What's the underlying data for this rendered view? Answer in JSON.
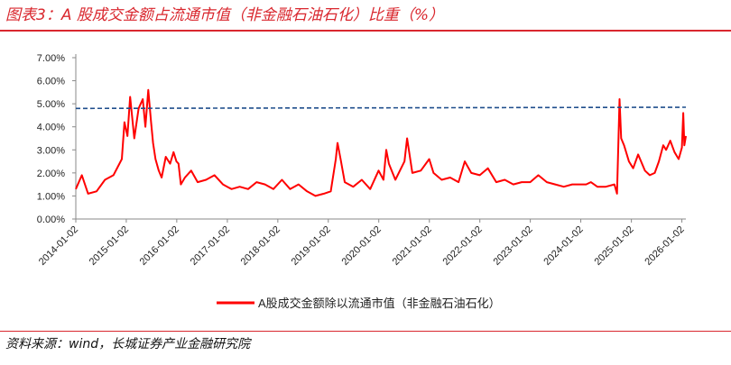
{
  "header": {
    "title": "图表3：A 股成交金额占流通市值（非金融石油石化）比重（%）"
  },
  "footer": {
    "source": "资料来源：wind，长城证券产业金融研究院"
  },
  "chart_data": {
    "type": "line",
    "title": "",
    "xlabel": "",
    "ylabel": "",
    "ylim": [
      0,
      7
    ],
    "y_ticks": [
      "0.00%",
      "1.00%",
      "2.00%",
      "3.00%",
      "4.00%",
      "5.00%",
      "6.00%",
      "7.00%"
    ],
    "x_ticks": [
      "2014-01-02",
      "2015-01-02",
      "2016-01-02",
      "2017-01-02",
      "2018-01-02",
      "2019-01-02",
      "2020-01-02",
      "2021-01-02",
      "2022-01-02",
      "2023-01-02",
      "2024-01-02",
      "2025-01-02",
      "2026-01-02"
    ],
    "x_range": [
      "2014-01-02",
      "2026-01-31"
    ],
    "grid": false,
    "legend_position": "bottom",
    "series": [
      {
        "name": "A股成交金额除以流通市值（非金融石油石化）",
        "color": "#ff0000",
        "x": [
          "2014-01-02",
          "2014-02-15",
          "2014-04-01",
          "2014-06-01",
          "2014-08-01",
          "2014-10-01",
          "2014-12-01",
          "2014-12-20",
          "2015-01-10",
          "2015-01-30",
          "2015-03-01",
          "2015-04-01",
          "2015-05-01",
          "2015-05-20",
          "2015-06-10",
          "2015-06-30",
          "2015-07-15",
          "2015-08-01",
          "2015-08-25",
          "2015-09-15",
          "2015-10-15",
          "2015-11-15",
          "2015-12-10",
          "2015-12-31",
          "2016-01-15",
          "2016-02-01",
          "2016-03-01",
          "2016-04-15",
          "2016-06-01",
          "2016-08-01",
          "2016-10-01",
          "2016-12-01",
          "2017-02-01",
          "2017-04-01",
          "2017-06-01",
          "2017-08-01",
          "2017-10-01",
          "2017-12-01",
          "2018-02-01",
          "2018-04-01",
          "2018-06-01",
          "2018-08-01",
          "2018-10-01",
          "2018-12-01",
          "2019-01-20",
          "2019-02-25",
          "2019-03-10",
          "2019-04-01",
          "2019-05-01",
          "2019-07-01",
          "2019-09-01",
          "2019-11-01",
          "2020-01-01",
          "2020-02-05",
          "2020-02-25",
          "2020-03-15",
          "2020-05-01",
          "2020-07-06",
          "2020-07-25",
          "2020-09-01",
          "2020-11-01",
          "2021-01-01",
          "2021-02-01",
          "2021-04-01",
          "2021-06-01",
          "2021-08-01",
          "2021-09-15",
          "2021-11-01",
          "2022-01-01",
          "2022-03-01",
          "2022-05-01",
          "2022-07-01",
          "2022-09-01",
          "2022-11-01",
          "2023-01-01",
          "2023-03-01",
          "2023-05-01",
          "2023-07-01",
          "2023-09-01",
          "2023-11-01",
          "2024-01-01",
          "2024-02-10",
          "2024-03-15",
          "2024-05-01",
          "2024-07-01",
          "2024-09-01",
          "2024-09-20",
          "2024-10-08",
          "2024-10-20",
          "2024-11-10",
          "2024-12-15",
          "2025-01-15",
          "2025-02-20",
          "2025-03-20",
          "2025-04-10",
          "2025-05-15",
          "2025-06-20",
          "2025-07-20",
          "2025-08-20",
          "2025-09-10",
          "2025-10-10",
          "2025-11-10",
          "2025-12-10",
          "2026-01-02",
          "2026-01-12",
          "2026-01-20",
          "2026-01-31"
        ],
        "values": [
          1.3,
          1.9,
          1.1,
          1.2,
          1.7,
          1.9,
          2.6,
          4.2,
          3.6,
          5.3,
          3.5,
          4.8,
          5.2,
          4.0,
          5.6,
          4.2,
          3.3,
          2.6,
          2.1,
          1.8,
          2.7,
          2.4,
          2.9,
          2.5,
          2.4,
          1.5,
          1.8,
          2.1,
          1.6,
          1.7,
          1.9,
          1.5,
          1.3,
          1.4,
          1.3,
          1.6,
          1.5,
          1.3,
          1.7,
          1.3,
          1.5,
          1.2,
          1.0,
          1.1,
          1.2,
          2.6,
          3.3,
          2.6,
          1.6,
          1.4,
          1.7,
          1.3,
          2.1,
          1.7,
          3.0,
          2.4,
          1.7,
          2.5,
          3.5,
          2.0,
          2.1,
          2.6,
          2.0,
          1.7,
          1.8,
          1.6,
          2.5,
          2.0,
          1.9,
          2.2,
          1.6,
          1.7,
          1.5,
          1.6,
          1.6,
          1.9,
          1.6,
          1.5,
          1.4,
          1.5,
          1.5,
          1.5,
          1.6,
          1.4,
          1.4,
          1.5,
          1.1,
          5.2,
          3.5,
          3.2,
          2.5,
          2.2,
          2.8,
          2.4,
          2.1,
          1.9,
          2.0,
          2.5,
          3.2,
          3.0,
          3.4,
          2.9,
          2.6,
          3.1,
          4.6,
          3.2,
          3.6
        ]
      },
      {
        "name": "",
        "style": "dashed",
        "color": "#1f4e8c",
        "x": [
          "2014-01-02",
          "2026-01-31"
        ],
        "values": [
          4.8,
          4.85
        ]
      }
    ]
  }
}
